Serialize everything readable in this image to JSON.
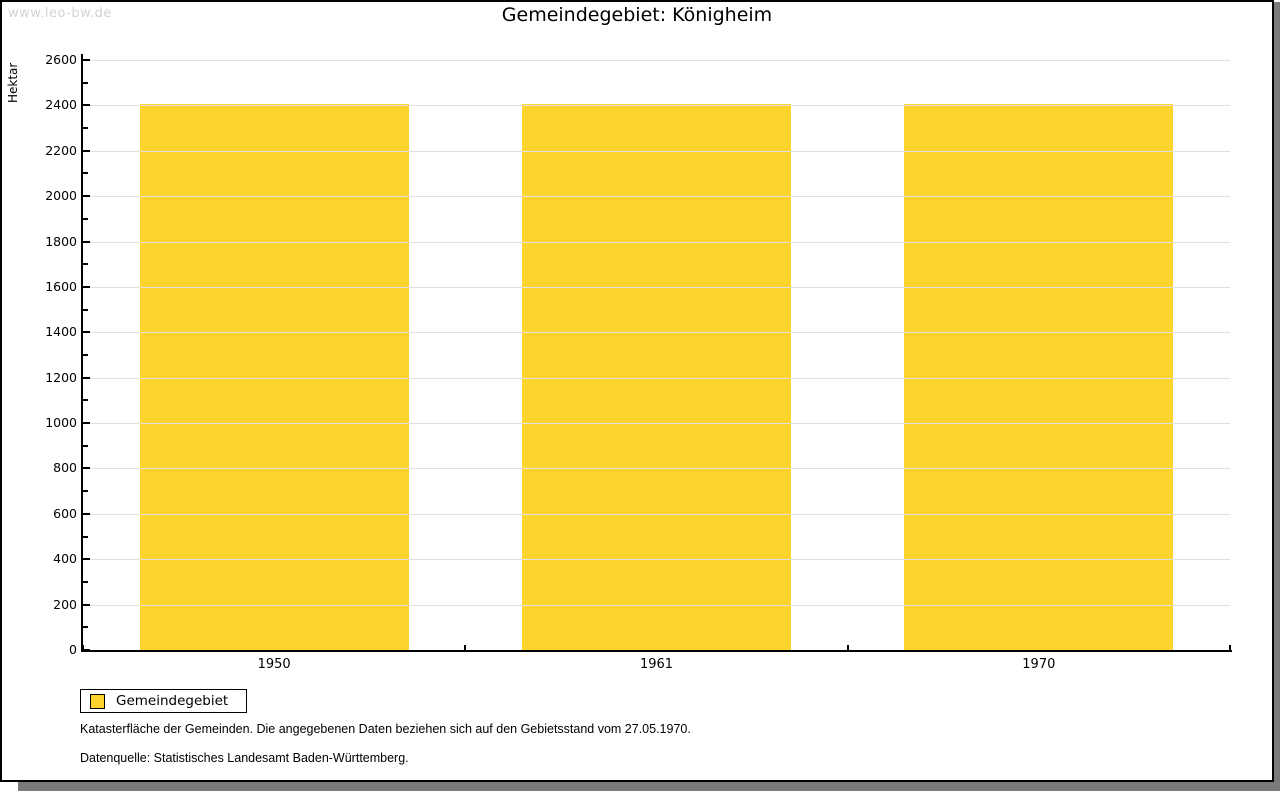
{
  "watermark": "www.leo-bw.de",
  "header": {
    "title": "Gemeindegebiet: Königheim"
  },
  "chart_data": {
    "type": "bar",
    "title": "Gemeindegebiet: Königheim",
    "ylabel": "Hektar",
    "xlabel": "",
    "categories": [
      "1950",
      "1961",
      "1970"
    ],
    "series": [
      {
        "name": "Gemeindegebiet",
        "values": [
          2406,
          2406,
          2406
        ],
        "color": "#fdd32e"
      }
    ],
    "ylim": [
      0,
      2600
    ],
    "ytick_major_interval": 200,
    "ytick_minor_interval": 100,
    "grid": true,
    "legend_position": "bottom-left"
  },
  "legend": {
    "items": [
      {
        "label": "Gemeindegebiet",
        "color": "#fdd32e"
      }
    ]
  },
  "footnotes": {
    "line1": "Katasterfläche der Gemeinden. Die angegebenen Daten beziehen sich auf den Gebietsstand vom 27.05.1970.",
    "line2": "Datenquelle: Statistisches Landesamt Baden-Württemberg."
  },
  "colors": {
    "bar": "#fdd32e",
    "grid": "#e0e0e0",
    "axis": "#000000",
    "background": "#ffffff",
    "watermark": "#d3d3d3",
    "frame_border": "#000000",
    "frame_shadow": "#7a7a7a"
  }
}
